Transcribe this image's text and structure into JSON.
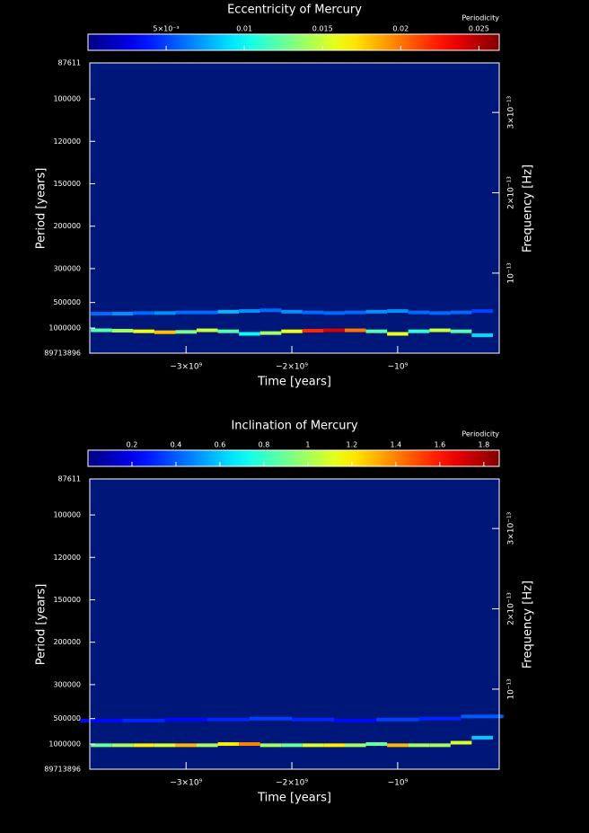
{
  "chart_data": [
    {
      "type": "heatmap",
      "title": "Eccentricity of Mercury",
      "colorbar_label": "Periodicity",
      "xlabel": "Time [years]",
      "ylabel": "Period [years]",
      "y2label": "Frequency [Hz]",
      "xlim": [
        -3910000000,
        -40000000
      ],
      "xticks": [
        {
          "value": -3000000000,
          "label": "−3×10⁹"
        },
        {
          "value": -2000000000,
          "label": "−2×10⁹"
        },
        {
          "value": -1000000000,
          "label": "−10⁹"
        }
      ],
      "yscale": "reciprocal",
      "ylim": [
        89713896,
        87611
      ],
      "yticks": [
        87611,
        100000,
        120000,
        150000,
        200000,
        300000,
        500000,
        1000000,
        89713896
      ],
      "y2lim": [
        3.53e-16,
        3.617e-13
      ],
      "y2ticks": [
        {
          "value": 1e-13,
          "label": "10⁻¹³"
        },
        {
          "value": 2e-13,
          "label": "2×10⁻¹³"
        },
        {
          "value": 3e-13,
          "label": "3×10⁻¹³"
        }
      ],
      "colormap": "jet",
      "background": "#00177a",
      "zlim": [
        0,
        0.0263
      ],
      "zticks": [
        {
          "value": 0.005,
          "label": "5×10⁻³"
        },
        0.01,
        0.015,
        0.02,
        0.025
      ],
      "ridges": [
        {
          "x": [
            -3800000000,
            -3600000000,
            -3400000000,
            -3200000000,
            -3000000000,
            -2800000000,
            -2600000000,
            -2400000000,
            -2200000000,
            -2000000000,
            -1800000000,
            -1600000000,
            -1400000000,
            -1200000000,
            -1000000000,
            -800000000,
            -600000000,
            -400000000,
            -200000000
          ],
          "periods": [
            640000,
            640000,
            630000,
            630000,
            620000,
            620000,
            610000,
            600000,
            590000,
            610000,
            620000,
            630000,
            620000,
            610000,
            600000,
            620000,
            630000,
            620000,
            600000
          ],
          "values": [
            0.006,
            0.007,
            0.006,
            0.007,
            0.006,
            0.006,
            0.008,
            0.007,
            0.006,
            0.007,
            0.006,
            0.006,
            0.006,
            0.007,
            0.007,
            0.006,
            0.006,
            0.006,
            0.005
          ]
        },
        {
          "x": [
            -3800000000,
            -3600000000,
            -3400000000,
            -3200000000,
            -3000000000,
            -2800000000,
            -2600000000,
            -2400000000,
            -2200000000,
            -2000000000,
            -1800000000,
            -1600000000,
            -1400000000,
            -1200000000,
            -1000000000,
            -800000000,
            -600000000,
            -400000000,
            -200000000
          ],
          "periods": [
            1100000,
            1120000,
            1150000,
            1200000,
            1180000,
            1100000,
            1150000,
            1300000,
            1250000,
            1150000,
            1120000,
            1100000,
            1100000,
            1150000,
            1300000,
            1150000,
            1100000,
            1150000,
            1400000
          ],
          "values": [
            0.012,
            0.014,
            0.016,
            0.018,
            0.013,
            0.015,
            0.012,
            0.01,
            0.014,
            0.016,
            0.022,
            0.024,
            0.02,
            0.012,
            0.016,
            0.011,
            0.015,
            0.012,
            0.009
          ]
        }
      ]
    },
    {
      "type": "heatmap",
      "title": "Inclination of Mercury",
      "colorbar_label": "Periodicity",
      "xlabel": "Time [years]",
      "ylabel": "Period [years]",
      "y2label": "Frequency [Hz]",
      "xlim": [
        -3910000000,
        -40000000
      ],
      "xticks": [
        {
          "value": -3000000000,
          "label": "−3×10⁹"
        },
        {
          "value": -2000000000,
          "label": "−2×10⁹"
        },
        {
          "value": -1000000000,
          "label": "−10⁹"
        }
      ],
      "yscale": "reciprocal",
      "ylim": [
        89713896,
        87611
      ],
      "yticks": [
        87611,
        100000,
        120000,
        150000,
        200000,
        300000,
        500000,
        1000000,
        89713896
      ],
      "y2lim": [
        3.53e-16,
        3.617e-13
      ],
      "y2ticks": [
        {
          "value": 1e-13,
          "label": "10⁻¹³"
        },
        {
          "value": 2e-13,
          "label": "2×10⁻¹³"
        },
        {
          "value": 3e-13,
          "label": "3×10⁻¹³"
        }
      ],
      "colormap": "jet",
      "background": "#00177a",
      "zlim": [
        0,
        1.87
      ],
      "zticks": [
        0.2,
        0.4,
        0.6,
        0.8,
        1,
        1.2,
        1.4,
        1.6,
        1.8
      ],
      "ridges": [
        {
          "x": [
            -3800000000,
            -3600000000,
            -3400000000,
            -3200000000,
            -3000000000,
            -2800000000,
            -2600000000,
            -2400000000,
            -2200000000,
            -2000000000,
            -1800000000,
            -1600000000,
            -1400000000,
            -1200000000,
            -1000000000,
            -800000000,
            -600000000,
            -400000000,
            -200000000
          ],
          "periods": [
            1050000,
            1050000,
            1050000,
            1050000,
            1050000,
            1050000,
            1000000,
            1000000,
            1050000,
            1050000,
            1050000,
            1050000,
            1050000,
            1000000,
            1050000,
            1050000,
            1050000,
            950000,
            800000
          ],
          "values": [
            0.9,
            1.0,
            1.2,
            1.1,
            1.3,
            1.0,
            1.2,
            1.4,
            1.0,
            0.9,
            1.1,
            1.2,
            1.0,
            0.9,
            1.3,
            1.0,
            1.0,
            1.1,
            0.6
          ]
        },
        {
          "x": [
            -3800000000,
            -3400000000,
            -3000000000,
            -2600000000,
            -2200000000,
            -1800000000,
            -1400000000,
            -1000000000,
            -600000000,
            -200000000
          ],
          "periods": [
            520000,
            520000,
            510000,
            510000,
            500000,
            510000,
            520000,
            510000,
            500000,
            480000
          ],
          "values": [
            0.25,
            0.3,
            0.25,
            0.3,
            0.35,
            0.3,
            0.25,
            0.35,
            0.3,
            0.4
          ]
        }
      ]
    }
  ]
}
